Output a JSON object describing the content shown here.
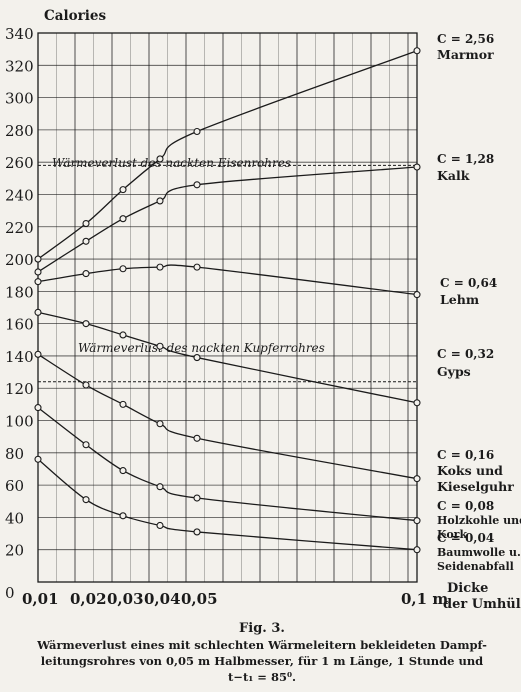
{
  "chart_data": {
    "type": "line",
    "ylabel": "Calories",
    "xlabel": "Dicke der Umhüllung",
    "x_tick_labels": [
      "0,01",
      "0,02",
      "0,03",
      "0,04",
      "0,05",
      "0,1 m"
    ],
    "y_ticks": [
      0,
      20,
      40,
      60,
      80,
      100,
      120,
      140,
      160,
      180,
      200,
      220,
      240,
      260,
      280,
      300,
      320,
      340
    ],
    "ylim": [
      0,
      340
    ],
    "xlim": [
      0.01,
      0.1
    ],
    "x": [
      0.01,
      0.02,
      0.03,
      0.04,
      0.05,
      0.1
    ],
    "grid": true,
    "series": [
      {
        "name": "Marmor",
        "c_label": "C = 2,56",
        "values": [
          200,
          222,
          243,
          262,
          279,
          329
        ]
      },
      {
        "name": "Kalk",
        "c_label": "C = 1,28",
        "values": [
          192,
          211,
          225,
          236,
          246,
          257
        ]
      },
      {
        "name": "Lehm",
        "c_label": "C = 0,64",
        "values": [
          186,
          191,
          194,
          195,
          195,
          178
        ]
      },
      {
        "name": "Gyps",
        "c_label": "C = 0,32",
        "values": [
          167,
          160,
          153,
          146,
          139,
          111
        ]
      },
      {
        "name": "Koks und Kieselguhr",
        "c_label": "C = 0,16",
        "values": [
          141,
          122,
          110,
          98,
          89,
          64
        ]
      },
      {
        "name": "Holzkohle und Kork",
        "c_label": "C = 0,08",
        "values": [
          108,
          85,
          69,
          59,
          52,
          38
        ]
      },
      {
        "name": "Baumwolle u. Seidenabfall",
        "c_label": "C = 0,04",
        "values": [
          76,
          51,
          41,
          35,
          31,
          20
        ]
      }
    ],
    "reference_lines": [
      {
        "label": "Wärmeverlust des nackten Eisenrohres",
        "value": 258
      },
      {
        "label": "Wärmeverlust des nackten Kupferrohres",
        "value": 124
      }
    ]
  },
  "caption": {
    "fig": "Fig. 3.",
    "line1": "Wärmeverlust eines mit schlechten Wärmeleitern bekleideten Dampf-",
    "line2": "leitungsrohres von 0,05 m Halbmesser, für 1 m Länge, 1 Stunde und",
    "line3": "t−t₁ = 85⁰."
  },
  "colors": {
    "paper": "#f3f1ec",
    "ink": "#1b1b1b",
    "bleed": "#cfcac0"
  }
}
